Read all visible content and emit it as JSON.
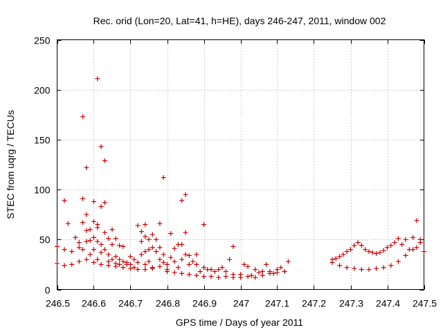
{
  "chart_data": {
    "type": "scatter",
    "title": "Rec. orid (Lon=20, Lat=41, h=HE), days 246-247, 2011, window 002",
    "xlabel": "GPS time / Days of year 2011",
    "ylabel": "STEC from uqrg / TECUs",
    "xlim": [
      246.5,
      247.5
    ],
    "ylim": [
      0,
      250
    ],
    "xticks": [
      246.5,
      246.6,
      246.7,
      246.8,
      246.9,
      247.0,
      247.1,
      247.2,
      247.3,
      247.4,
      247.5
    ],
    "xtick_labels": [
      "246.5",
      "246.6",
      "246.7",
      "246.8",
      "246.9",
      "247",
      "247.1",
      "247.2",
      "247.3",
      "247.4",
      "247.5"
    ],
    "yticks": [
      0,
      50,
      100,
      150,
      200,
      250
    ],
    "ytick_labels": [
      "0",
      "50",
      "100",
      "150",
      "200",
      "250"
    ],
    "grid": true,
    "marker": "plus",
    "color": "#cc0000",
    "points": [
      [
        246.5,
        43
      ],
      [
        246.52,
        89
      ],
      [
        246.52,
        40
      ],
      [
        246.53,
        66
      ],
      [
        246.54,
        38
      ],
      [
        246.55,
        52
      ],
      [
        246.56,
        47
      ],
      [
        246.56,
        42
      ],
      [
        246.57,
        173
      ],
      [
        246.57,
        91
      ],
      [
        246.57,
        67
      ],
      [
        246.57,
        40
      ],
      [
        246.58,
        48
      ],
      [
        246.58,
        122
      ],
      [
        246.58,
        75
      ],
      [
        246.58,
        59
      ],
      [
        246.59,
        60
      ],
      [
        246.59,
        49
      ],
      [
        246.59,
        35
      ],
      [
        246.6,
        88
      ],
      [
        246.6,
        68
      ],
      [
        246.6,
        52
      ],
      [
        246.6,
        40
      ],
      [
        246.61,
        211
      ],
      [
        246.61,
        65
      ],
      [
        246.61,
        62
      ],
      [
        246.61,
        48
      ],
      [
        246.61,
        30
      ],
      [
        246.62,
        143
      ],
      [
        246.62,
        83
      ],
      [
        246.62,
        45
      ],
      [
        246.62,
        37
      ],
      [
        246.63,
        129
      ],
      [
        246.63,
        87
      ],
      [
        246.63,
        57
      ],
      [
        246.63,
        40
      ],
      [
        246.64,
        51
      ],
      [
        246.64,
        35
      ],
      [
        246.64,
        28
      ],
      [
        246.65,
        60
      ],
      [
        246.65,
        45
      ],
      [
        246.65,
        30
      ],
      [
        246.66,
        51
      ],
      [
        246.66,
        33
      ],
      [
        246.66,
        26
      ],
      [
        246.67,
        44
      ],
      [
        246.67,
        30
      ],
      [
        246.67,
        25
      ],
      [
        246.68,
        43
      ],
      [
        246.68,
        28
      ],
      [
        246.69,
        25
      ],
      [
        246.69,
        27
      ],
      [
        246.7,
        33
      ],
      [
        246.7,
        25
      ],
      [
        246.71,
        30
      ],
      [
        246.71,
        22
      ],
      [
        246.72,
        64
      ],
      [
        246.72,
        27
      ],
      [
        246.73,
        58
      ],
      [
        246.73,
        48
      ],
      [
        246.73,
        35
      ],
      [
        246.74,
        65
      ],
      [
        246.74,
        53
      ],
      [
        246.74,
        38
      ],
      [
        246.74,
        25
      ],
      [
        246.75,
        50
      ],
      [
        246.75,
        40
      ],
      [
        246.75,
        28
      ],
      [
        246.76,
        55
      ],
      [
        246.76,
        42
      ],
      [
        246.76,
        22
      ],
      [
        246.77,
        50
      ],
      [
        246.77,
        38
      ],
      [
        246.78,
        66
      ],
      [
        246.78,
        42
      ],
      [
        246.78,
        30
      ],
      [
        246.79,
        112
      ],
      [
        246.79,
        35
      ],
      [
        246.79,
        27
      ],
      [
        246.8,
        25
      ],
      [
        246.8,
        20
      ],
      [
        246.81,
        56
      ],
      [
        246.81,
        32
      ],
      [
        246.82,
        28
      ],
      [
        246.82,
        41
      ],
      [
        246.83,
        45
      ],
      [
        246.83,
        22
      ],
      [
        246.84,
        89
      ],
      [
        246.84,
        45
      ],
      [
        246.84,
        30
      ],
      [
        246.85,
        95
      ],
      [
        246.85,
        57
      ],
      [
        246.85,
        35
      ],
      [
        246.86,
        34
      ],
      [
        246.86,
        25
      ],
      [
        246.87,
        28
      ],
      [
        246.88,
        35
      ],
      [
        246.88,
        25
      ],
      [
        246.89,
        18
      ],
      [
        246.9,
        65
      ],
      [
        246.9,
        22
      ],
      [
        246.91,
        20
      ],
      [
        246.92,
        20
      ],
      [
        246.93,
        18
      ],
      [
        246.94,
        20
      ],
      [
        246.95,
        22
      ],
      [
        246.96,
        18
      ],
      [
        246.97,
        30
      ],
      [
        246.98,
        43
      ],
      [
        246.98,
        15
      ],
      [
        247.0,
        15
      ],
      [
        247.01,
        25
      ],
      [
        247.02,
        23
      ],
      [
        247.03,
        14
      ],
      [
        247.04,
        20
      ],
      [
        247.05,
        17
      ],
      [
        247.06,
        18
      ],
      [
        247.07,
        25
      ],
      [
        247.08,
        18
      ],
      [
        247.09,
        16
      ],
      [
        247.1,
        20
      ],
      [
        247.11,
        22
      ],
      [
        247.12,
        18
      ],
      [
        247.13,
        28
      ],
      [
        247.25,
        30
      ],
      [
        247.26,
        31
      ],
      [
        247.27,
        33
      ],
      [
        247.28,
        35
      ],
      [
        247.29,
        38
      ],
      [
        247.3,
        40
      ],
      [
        247.31,
        44
      ],
      [
        247.32,
        47
      ],
      [
        247.33,
        44
      ],
      [
        247.34,
        40
      ],
      [
        247.35,
        38
      ],
      [
        247.36,
        37
      ],
      [
        247.37,
        36
      ],
      [
        247.38,
        37
      ],
      [
        247.39,
        39
      ],
      [
        247.4,
        42
      ],
      [
        247.41,
        44
      ],
      [
        247.42,
        47
      ],
      [
        247.43,
        51
      ],
      [
        247.44,
        45
      ],
      [
        247.45,
        50
      ],
      [
        247.46,
        40
      ],
      [
        247.47,
        52
      ],
      [
        247.48,
        69
      ],
      [
        247.48,
        42
      ],
      [
        247.49,
        50
      ],
      [
        247.5,
        38
      ],
      [
        246.5,
        26
      ],
      [
        246.52,
        24
      ],
      [
        246.54,
        25
      ],
      [
        246.56,
        28
      ],
      [
        246.58,
        30
      ],
      [
        246.6,
        27
      ],
      [
        246.62,
        25
      ],
      [
        246.64,
        24
      ],
      [
        246.66,
        23
      ],
      [
        246.68,
        22
      ],
      [
        246.7,
        21
      ],
      [
        246.72,
        20
      ],
      [
        246.74,
        20
      ],
      [
        246.76,
        21
      ],
      [
        246.78,
        23
      ],
      [
        246.8,
        18
      ],
      [
        246.82,
        17
      ],
      [
        246.84,
        16
      ],
      [
        246.86,
        15
      ],
      [
        246.88,
        14
      ],
      [
        246.9,
        13
      ],
      [
        246.92,
        13
      ],
      [
        246.94,
        12
      ],
      [
        246.96,
        13
      ],
      [
        246.98,
        12
      ],
      [
        247.0,
        12
      ],
      [
        247.02,
        13
      ],
      [
        247.04,
        12
      ],
      [
        247.06,
        14
      ],
      [
        247.08,
        16
      ],
      [
        247.1,
        17
      ],
      [
        247.12,
        18
      ],
      [
        247.25,
        27
      ],
      [
        247.27,
        24
      ],
      [
        247.29,
        22
      ],
      [
        247.31,
        21
      ],
      [
        247.33,
        20
      ],
      [
        247.35,
        20
      ],
      [
        247.37,
        21
      ],
      [
        247.39,
        22
      ],
      [
        247.41,
        24
      ],
      [
        247.43,
        28
      ],
      [
        247.45,
        34
      ],
      [
        247.47,
        40
      ],
      [
        247.49,
        47
      ]
    ]
  }
}
